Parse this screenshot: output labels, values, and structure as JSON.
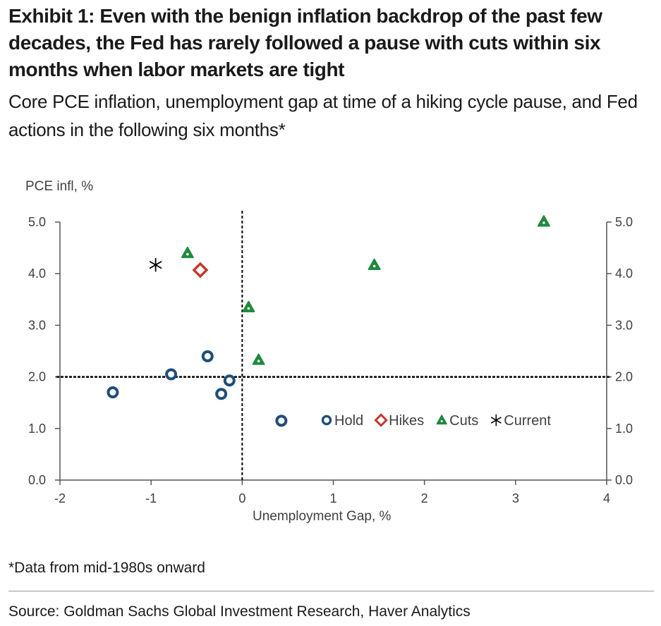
{
  "title": "Exhibit 1: Even with the benign inflation backdrop of the past few decades, the Fed has rarely followed a pause with cuts within six months when labor markets are tight",
  "subtitle": "Core PCE inflation, unemployment gap at time of a hiking cycle pause, and Fed actions in the following six months*",
  "footnote": "*Data from mid-1980s onward",
  "source": "Source: Goldman Sachs Global Investment Research, Haver Analytics",
  "colors": {
    "hold": "#1f4e79",
    "hikes": "#c0392b",
    "cuts": "#1e8a3e",
    "current": "#000000"
  },
  "chart_data": {
    "type": "scatter",
    "xlabel": "Unemployment Gap, %",
    "ylabel": "PCE infl, %",
    "xlim": [
      -2,
      4
    ],
    "ylim": [
      0,
      5
    ],
    "x_ticks": [
      "-2",
      "-1",
      "0",
      "1",
      "2",
      "3",
      "4"
    ],
    "y_ticks": [
      "0.0",
      "1.0",
      "2.0",
      "3.0",
      "4.0",
      "5.0"
    ],
    "reference_lines": {
      "x": 0,
      "y": 2
    },
    "legend_position": "inside-lower-right",
    "series": [
      {
        "name": "Hold",
        "marker": "circle",
        "points": [
          [
            -1.42,
            1.7
          ],
          [
            -0.78,
            2.05
          ],
          [
            -0.38,
            2.4
          ],
          [
            -0.14,
            1.93
          ],
          [
            -0.23,
            1.67
          ],
          [
            0.43,
            1.15
          ]
        ]
      },
      {
        "name": "Hikes",
        "marker": "diamond",
        "points": [
          [
            -0.46,
            4.07
          ]
        ]
      },
      {
        "name": "Cuts",
        "marker": "triangle",
        "points": [
          [
            -0.6,
            4.4
          ],
          [
            0.07,
            3.35
          ],
          [
            0.18,
            2.33
          ],
          [
            1.45,
            4.17
          ],
          [
            3.31,
            5.01
          ]
        ]
      },
      {
        "name": "Current",
        "marker": "asterisk",
        "points": [
          [
            -0.95,
            4.17
          ]
        ]
      }
    ]
  }
}
